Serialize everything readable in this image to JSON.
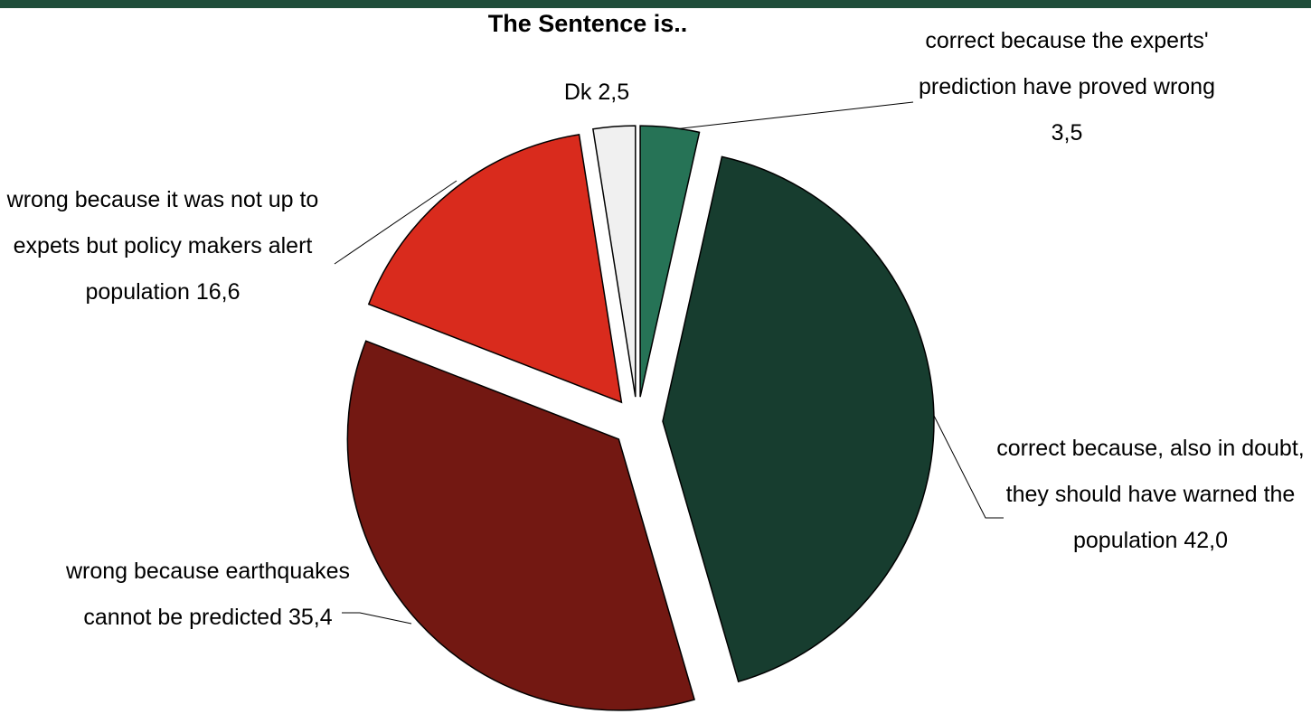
{
  "chart_data": {
    "type": "pie",
    "title": "The Sentence is..",
    "categories": [
      "correct because the experts' prediction have proved wrong",
      "correct because, also in doubt, they should have warned the population",
      "wrong because earthquakes cannot be predicted",
      "wrong because it was not up to expets but policy makers alert population",
      "Dk"
    ],
    "values": [
      3.5,
      42.0,
      35.4,
      16.6,
      2.5
    ],
    "value_labels": [
      "3,5",
      "42,0",
      "35,4",
      "16,6",
      "2,5"
    ],
    "colors": [
      "#267356",
      "#173d2f",
      "#731812",
      "#d92b1d",
      "#f0f0f0"
    ]
  }
}
